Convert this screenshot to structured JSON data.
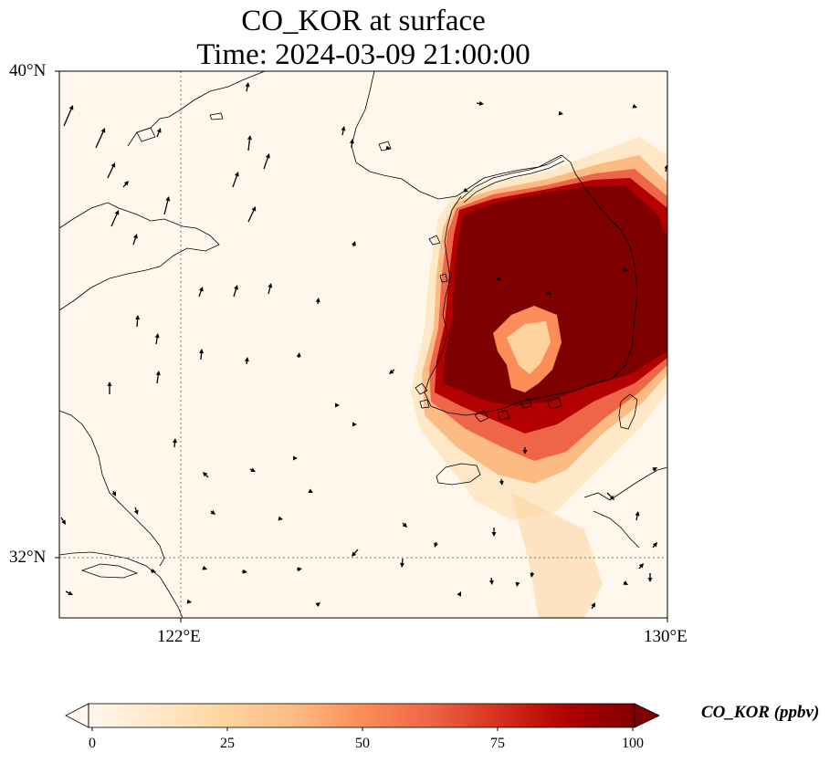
{
  "title": {
    "line1": "CO_KOR at surface",
    "line2": "Time: 2024-03-09 21:00:00"
  },
  "axes": {
    "lat_ticks": [
      "40°N",
      "32°N"
    ],
    "lon_ticks": [
      "122°E",
      "130°E"
    ],
    "lon_range": [
      120,
      130
    ],
    "lat_range": [
      31,
      40
    ]
  },
  "colorbar": {
    "label": "CO_KOR (ppbv)",
    "ticks": [
      "0",
      "25",
      "50",
      "75",
      "100"
    ],
    "range": [
      0,
      100
    ],
    "extend": "both",
    "colormap": "OrRd",
    "colors": [
      "#fff7ec",
      "#fee8c8",
      "#fdd49e",
      "#fdbb84",
      "#fc8d59",
      "#ef6548",
      "#d7301f",
      "#b30000",
      "#7f0000"
    ]
  },
  "colors": {
    "coastline": "#000000",
    "gridline": "#777777"
  }
}
